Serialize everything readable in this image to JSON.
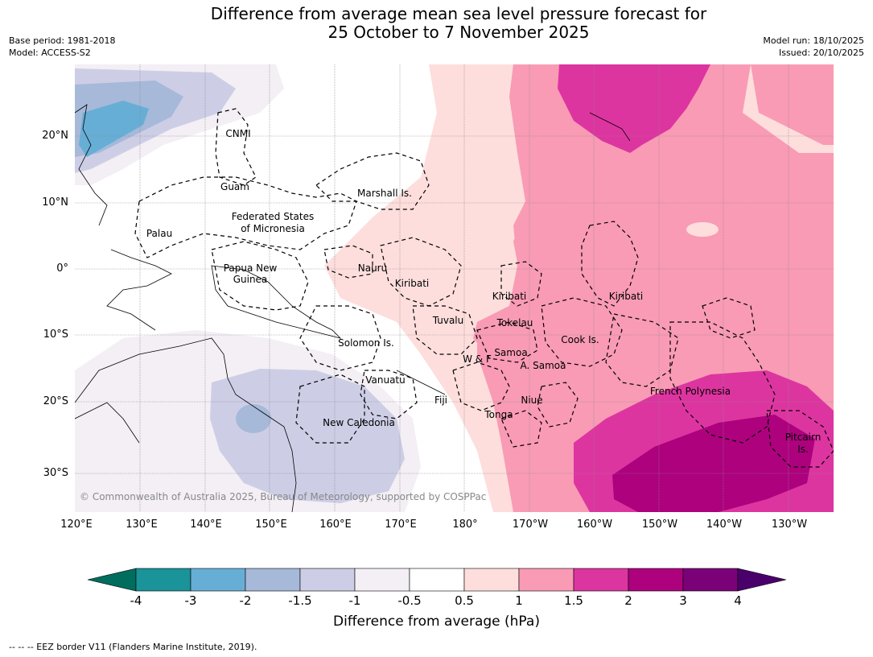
{
  "header": {
    "title_line1": "Difference from average mean sea level pressure forecast for",
    "title_line2": "25 October to 7 November 2025",
    "base_period": "Base period: 1981-2018",
    "model": "Model: ACCESS-S2",
    "model_run": "Model run: 18/10/2025",
    "issued": "Issued: 20/10/2025"
  },
  "map": {
    "copyright": "© Commonwealth of Australia 2025, Bureau of Meteorology, supported by COSPPac",
    "lon_labels": [
      "120°E",
      "130°E",
      "140°E",
      "150°E",
      "160°E",
      "170°E",
      "180°",
      "170°W",
      "160°W",
      "150°W",
      "140°W",
      "130°W"
    ],
    "lat_labels": [
      "20°N",
      "10°N",
      "0°",
      "10°S",
      "20°S",
      "30°S"
    ],
    "regions": {
      "cnmi": "CNMI",
      "guam": "Guam",
      "marshall": "Marshall Is.",
      "fsm1": "Federated States",
      "fsm2": "of Micronesia",
      "palau": "Palau",
      "png1": "Papua New",
      "png2": "Guinea",
      "nauru": "Nauru",
      "kiribati_w": "Kiribati",
      "kiribati_c": "Kiribati",
      "kiribati_e": "Kiribati",
      "tuvalu": "Tuvalu",
      "tokelau": "Tokelau",
      "cook": "Cook Is.",
      "solomon": "Solomon Is.",
      "wf": "W & F",
      "samoa": "Samoa",
      "asamoa": "A. Samoa",
      "vanuatu": "Vanuatu",
      "fiji": "Fiji",
      "niue": "Niue",
      "tonga": "Tonga",
      "newcal": "New Caledonia",
      "frpoly": "French Polynesia",
      "pitcairn1": "Pitcairn",
      "pitcairn2": "Is."
    }
  },
  "colorbar": {
    "title": "Difference from average (hPa)",
    "ticks": [
      "-4",
      "-3",
      "-2",
      "-1.5",
      "-1",
      "-0.5",
      "0.5",
      "1",
      "1.5",
      "2",
      "3",
      "4"
    ],
    "colors": [
      "#1a9399",
      "#67aed6",
      "#a6b9d9",
      "#cdcee6",
      "#f3eff5",
      "#ffffff",
      "#fddedd",
      "#f99bb5",
      "#dd35a0",
      "#ad017e",
      "#7a0177"
    ],
    "low_extend_color": "#006d5e",
    "high_extend_color": "#4a006a"
  },
  "footnote": "--  --  -- EEZ border V11 (Flanders Marine Institute, 2019)."
}
